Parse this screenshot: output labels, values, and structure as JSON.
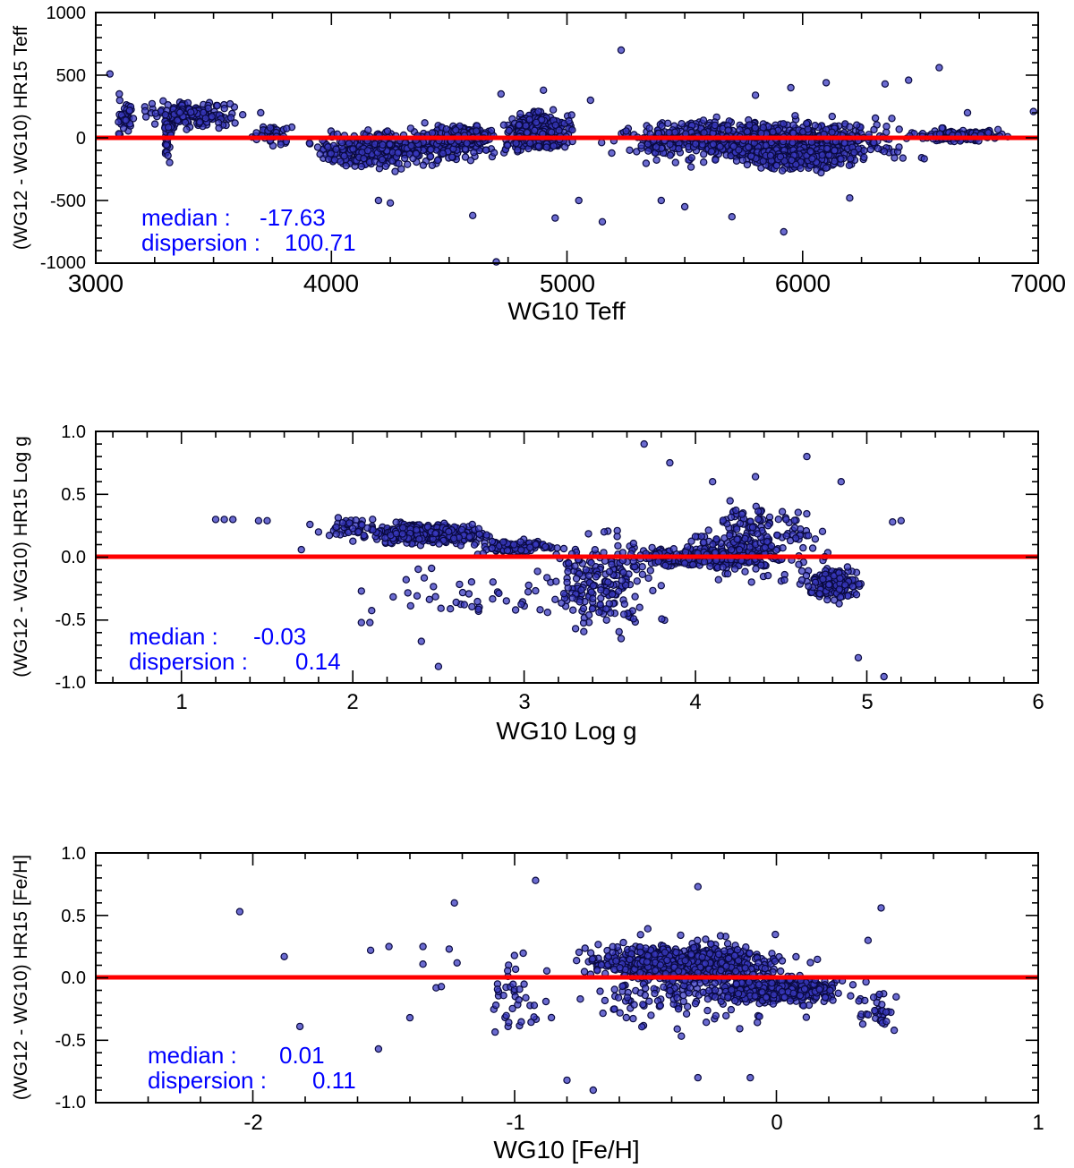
{
  "colors": {
    "points_fill": "#3a3ac0",
    "points_stroke": "#0a0a40",
    "zero_line": "#ff0000",
    "stats_text": "#0000ff",
    "axis": "#000000"
  },
  "chart_data": [
    {
      "type": "scatter",
      "xlabel": "WG10 Teff",
      "ylabel": "(WG12 - WG10) HR15   Teff",
      "xlim": [
        3000,
        7000
      ],
      "ylim": [
        -1000,
        1000
      ],
      "x_ticks": [
        "3000",
        "4000",
        "5000",
        "6000",
        "7000"
      ],
      "y_ticks": [
        "1000",
        "500",
        "0",
        "-500",
        "-1000"
      ],
      "reference_line_y": 0,
      "stats": [
        {
          "label": "median :",
          "value": "-17.63"
        },
        {
          "label": "dispersion :",
          "value": "100.71"
        }
      ],
      "clusters": [
        {
          "x": [
            3050,
            3200
          ],
          "y": [
            -50,
            350
          ],
          "n": 40
        },
        {
          "x": [
            3150,
            3650
          ],
          "y": [
            60,
            320
          ],
          "n": 160
        },
        {
          "x": [
            3280,
            3330
          ],
          "y": [
            -250,
            300
          ],
          "n": 40
        },
        {
          "x": [
            3650,
            3850
          ],
          "y": [
            -100,
            150
          ],
          "n": 50
        },
        {
          "x": [
            3850,
            4450
          ],
          "y": [
            -300,
            80
          ],
          "n": 260
        },
        {
          "x": [
            4100,
            4800
          ],
          "y": [
            -250,
            150
          ],
          "n": 220
        },
        {
          "x": [
            4450,
            4700
          ],
          "y": [
            -80,
            120
          ],
          "n": 160
        },
        {
          "x": [
            4700,
            5050
          ],
          "y": [
            -150,
            250
          ],
          "n": 400
        },
        {
          "x": [
            5050,
            6600
          ],
          "y": [
            -250,
            200
          ],
          "n": 900
        },
        {
          "x": [
            5700,
            6300
          ],
          "y": [
            -300,
            -50
          ],
          "n": 200
        },
        {
          "x": [
            6400,
            6950
          ],
          "y": [
            -50,
            80
          ],
          "n": 150
        }
      ],
      "outliers": [
        [
          3060,
          510
        ],
        [
          3100,
          350
        ],
        [
          3700,
          200
        ],
        [
          4200,
          -500
        ],
        [
          4250,
          -520
        ],
        [
          4600,
          -620
        ],
        [
          4700,
          -990
        ],
        [
          4950,
          -640
        ],
        [
          5050,
          -500
        ],
        [
          5150,
          -670
        ],
        [
          5230,
          700
        ],
        [
          5400,
          -500
        ],
        [
          5500,
          -550
        ],
        [
          5700,
          -630
        ],
        [
          5920,
          -750
        ],
        [
          5950,
          400
        ],
        [
          6100,
          440
        ],
        [
          6350,
          430
        ],
        [
          6450,
          460
        ],
        [
          6580,
          560
        ],
        [
          6700,
          200
        ],
        [
          6980,
          210
        ],
        [
          5100,
          300
        ],
        [
          4900,
          380
        ],
        [
          4720,
          350
        ],
        [
          6200,
          -480
        ],
        [
          5800,
          340
        ]
      ]
    },
    {
      "type": "scatter",
      "xlabel": "WG10 Log g",
      "ylabel": "(WG12 - WG10) HR15 Log g",
      "xlim": [
        0.5,
        6
      ],
      "ylim": [
        -1,
        1
      ],
      "x_ticks": [
        "1",
        "2",
        "3",
        "4",
        "5",
        "6"
      ],
      "y_ticks": [
        "1.0",
        "0.5",
        "0.0",
        "-0.5",
        "-1.0"
      ],
      "reference_line_y": 0,
      "stats": [
        {
          "label": "median :",
          "value": "-0.03"
        },
        {
          "label": "dispersion :",
          "value": "0.14"
        }
      ],
      "clusters": [
        {
          "x": [
            2.0,
            2.9
          ],
          "y": [
            0.08,
            0.3
          ],
          "n": 350
        },
        {
          "x": [
            2.6,
            3.3
          ],
          "y": [
            0.0,
            0.15
          ],
          "n": 100
        },
        {
          "x": [
            3.0,
            3.9
          ],
          "y": [
            -0.7,
            0.3
          ],
          "n": 200
        },
        {
          "x": [
            3.5,
            4.6
          ],
          "y": [
            -0.1,
            0.1
          ],
          "n": 350
        },
        {
          "x": [
            3.8,
            4.9
          ],
          "y": [
            -0.25,
            0.5
          ],
          "n": 220
        },
        {
          "x": [
            4.6,
            5.0
          ],
          "y": [
            -0.38,
            -0.05
          ],
          "n": 170
        },
        {
          "x": [
            1.8,
            2.2
          ],
          "y": [
            0.1,
            0.35
          ],
          "n": 40
        },
        {
          "x": [
            2.0,
            3.5
          ],
          "y": [
            -0.6,
            0.0
          ],
          "n": 40
        }
      ],
      "outliers": [
        [
          1.2,
          0.3
        ],
        [
          1.25,
          0.3
        ],
        [
          1.3,
          0.3
        ],
        [
          1.45,
          0.29
        ],
        [
          1.5,
          0.29
        ],
        [
          1.7,
          0.06
        ],
        [
          1.75,
          0.26
        ],
        [
          1.8,
          0.2
        ],
        [
          2.05,
          -0.27
        ],
        [
          2.05,
          -0.52
        ],
        [
          2.1,
          -0.52
        ],
        [
          2.4,
          -0.67
        ],
        [
          2.5,
          -0.87
        ],
        [
          2.95,
          -0.42
        ],
        [
          3.7,
          0.9
        ],
        [
          3.85,
          0.75
        ],
        [
          4.1,
          0.6
        ],
        [
          4.35,
          0.64
        ],
        [
          4.65,
          0.8
        ],
        [
          4.95,
          -0.8
        ],
        [
          5.1,
          -0.95
        ],
        [
          5.2,
          0.29
        ],
        [
          5.15,
          0.28
        ],
        [
          4.85,
          0.6
        ]
      ]
    },
    {
      "type": "scatter",
      "xlabel": "WG10 [Fe/H]",
      "ylabel": "(WG12 - WG10) HR15 [Fe/H]",
      "xlim": [
        -2.6,
        1
      ],
      "ylim": [
        -1,
        1
      ],
      "x_ticks": [
        "-2",
        "-1",
        "0",
        "1"
      ],
      "y_ticks": [
        "1.0",
        "0.5",
        "0.0",
        "-0.5",
        "-1.0"
      ],
      "reference_line_y": 0,
      "stats": [
        {
          "label": "median :",
          "value": "0.01"
        },
        {
          "label": "dispersion :",
          "value": "0.11"
        }
      ],
      "clusters": [
        {
          "x": [
            -0.8,
            0.1
          ],
          "y": [
            -0.05,
            0.3
          ],
          "n": 700
        },
        {
          "x": [
            -0.3,
            0.35
          ],
          "y": [
            -0.25,
            0.05
          ],
          "n": 400
        },
        {
          "x": [
            -0.9,
            0.3
          ],
          "y": [
            -0.5,
            0.45
          ],
          "n": 300
        },
        {
          "x": [
            -1.2,
            -0.8
          ],
          "y": [
            -0.6,
            0.3
          ],
          "n": 40
        },
        {
          "x": [
            0.3,
            0.48
          ],
          "y": [
            -0.5,
            0.0
          ],
          "n": 30
        }
      ],
      "outliers": [
        [
          -2.05,
          0.53
        ],
        [
          -1.88,
          0.17
        ],
        [
          -1.82,
          -0.39
        ],
        [
          -1.55,
          0.22
        ],
        [
          -1.52,
          -0.57
        ],
        [
          -1.48,
          0.25
        ],
        [
          -1.4,
          -0.32
        ],
        [
          -1.35,
          0.25
        ],
        [
          -1.35,
          0.11
        ],
        [
          -1.3,
          -0.08
        ],
        [
          -1.28,
          -0.07
        ],
        [
          -1.25,
          0.23
        ],
        [
          -1.23,
          0.6
        ],
        [
          -1.22,
          0.12
        ],
        [
          -0.92,
          0.78
        ],
        [
          -0.8,
          -0.82
        ],
        [
          -0.7,
          -0.9
        ],
        [
          -0.3,
          -0.8
        ],
        [
          -0.3,
          0.73
        ],
        [
          0.35,
          0.3
        ],
        [
          0.4,
          0.56
        ],
        [
          0.42,
          -0.35
        ],
        [
          0.45,
          -0.42
        ],
        [
          -0.1,
          -0.8
        ]
      ]
    }
  ]
}
